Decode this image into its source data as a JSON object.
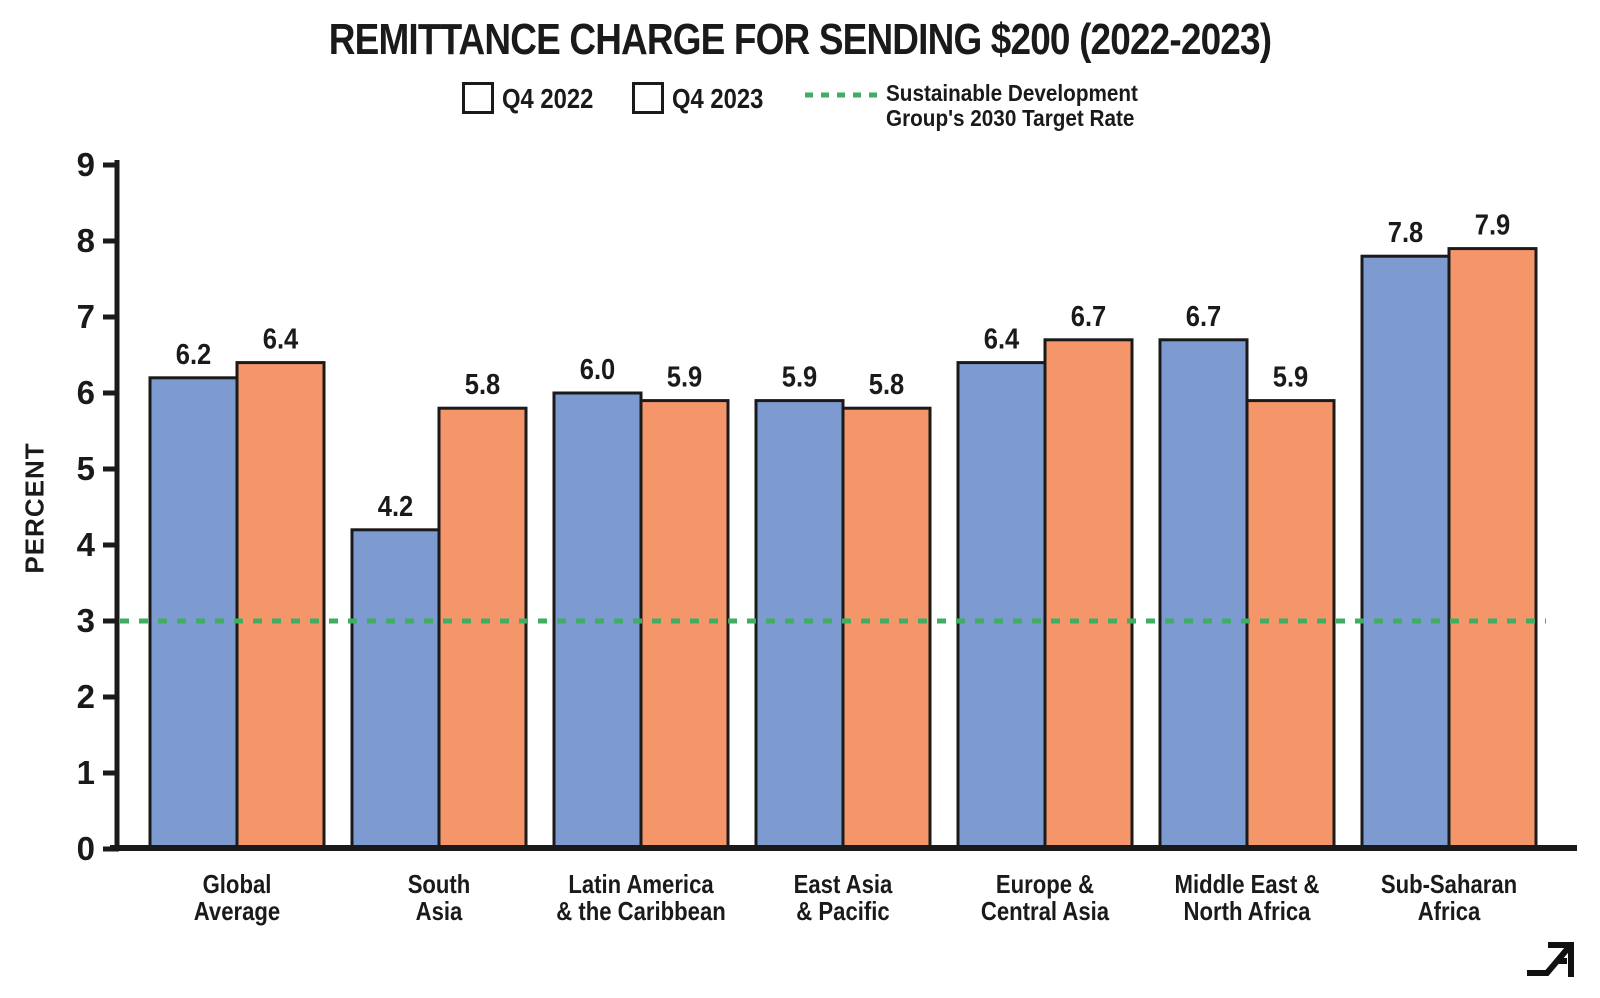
{
  "title": "REMITTANCE CHARGE FOR SENDING $200 (2022-2023)",
  "legend": {
    "series1_label": "Q4 2022",
    "series2_label": "Q4 2023",
    "target_label_line1": "Sustainable Development",
    "target_label_line2": "Group's 2030 Target Rate"
  },
  "ylabel": "PERCENT",
  "colors": {
    "q4_2022_blue": "#7d9bd1",
    "q4_2023_orange": "#f4966a",
    "target_green": "#3fae62",
    "ink": "#1a1a1a"
  },
  "logo_icon": "trend-arrow-logo",
  "chart_data": {
    "type": "bar",
    "title": "REMITTANCE CHARGE FOR SENDING $200 (2022-2023)",
    "categories": [
      "Global Average",
      "South Asia",
      "Latin America & the Caribbean",
      "East Asia & Pacific",
      "Europe & Central Asia",
      "Middle East & North Africa",
      "Sub-Saharan Africa"
    ],
    "category_lines": [
      [
        "Global",
        "Average"
      ],
      [
        "South",
        "Asia"
      ],
      [
        "Latin America",
        "& the Caribbean"
      ],
      [
        "East Asia",
        "& Pacific"
      ],
      [
        "Europe &",
        "Central Asia"
      ],
      [
        "Middle East &",
        "North Africa"
      ],
      [
        "Sub-Saharan",
        "Africa"
      ]
    ],
    "series": [
      {
        "name": "Q4 2022",
        "color": "#7d9bd1",
        "values": [
          6.2,
          4.2,
          6.0,
          5.9,
          6.4,
          6.7,
          7.8
        ]
      },
      {
        "name": "Q4 2023",
        "color": "#f4966a",
        "values": [
          6.4,
          5.8,
          5.9,
          5.8,
          6.7,
          5.9,
          7.9
        ]
      }
    ],
    "target_line": {
      "value": 3,
      "label": "Sustainable Development Group's 2030 Target Rate",
      "color": "#3fae62",
      "style": "dotted"
    },
    "xlabel": "",
    "ylabel": "PERCENT",
    "ylim": [
      0,
      9
    ],
    "yticks": [
      0,
      1,
      2,
      3,
      4,
      5,
      6,
      7,
      8,
      9
    ],
    "legend_position": "top",
    "grid": false
  }
}
